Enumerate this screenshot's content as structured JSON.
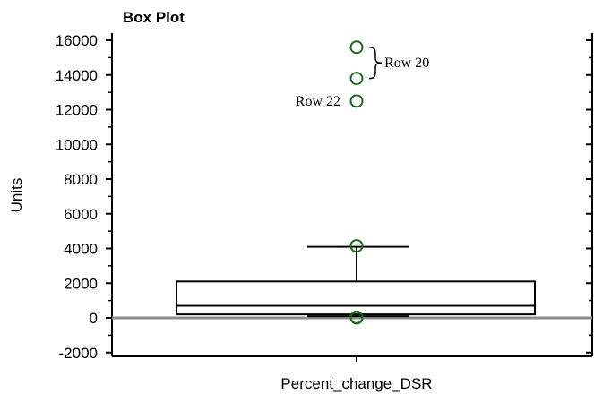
{
  "chart_data": {
    "type": "box",
    "title": "Box Plot",
    "xlabel": "Percent_change_DSR",
    "ylabel": "Units",
    "ylim": [
      -2000,
      16000
    ],
    "yticks": [
      -2000,
      0,
      2000,
      4000,
      6000,
      8000,
      10000,
      12000,
      14000,
      16000
    ],
    "categories": [
      "Percent_change_DSR"
    ],
    "box": {
      "whisker_low": 100,
      "q1": 200,
      "median": 700,
      "q3": 2100,
      "whisker_high": 4100
    },
    "outliers": [
      {
        "value": 15600,
        "label": ""
      },
      {
        "value": 13800,
        "label": ""
      },
      {
        "value": 12500,
        "label": "Row 22"
      },
      {
        "value": 4150,
        "label": ""
      },
      {
        "value": 0,
        "label": ""
      },
      {
        "value": 30,
        "label": ""
      }
    ],
    "bracket_annotation": {
      "label": "Row 20",
      "from": 13800,
      "to": 15600
    },
    "reference_line": 0,
    "colors": {
      "outlier": "#1a6b1a",
      "reference_line": "#8c8c8c",
      "box": "#000000"
    }
  }
}
